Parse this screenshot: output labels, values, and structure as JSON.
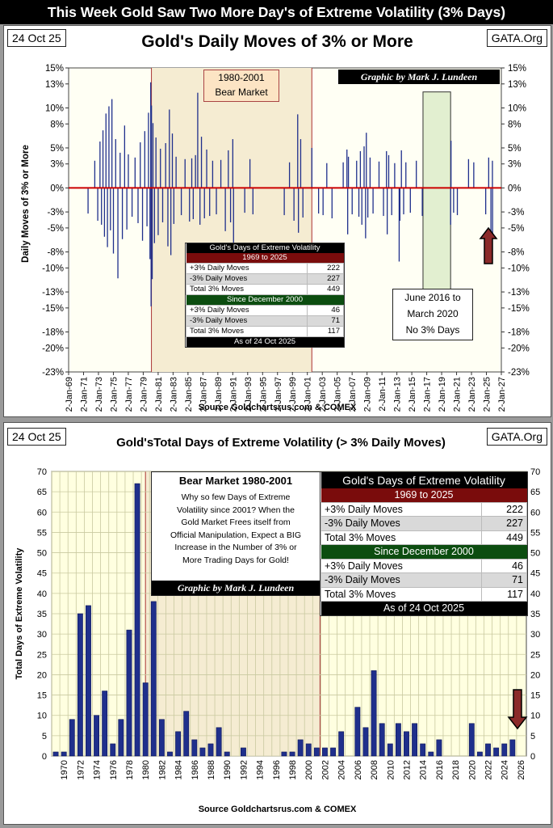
{
  "banner": "This Week Gold Saw Two More Day's of Extreme Volatility (3% Days)",
  "chart_data": [
    {
      "type": "bar",
      "title": "Gold's Daily Moves of 3% or More",
      "date": "24 Oct 25",
      "site": "GATA.Org",
      "ylabel": "Daily Moves  of  3% or More",
      "source": "Source Goldchartsrus.com & COMEX",
      "ylim": [
        -23,
        15
      ],
      "y_ticks": [
        15,
        13,
        10,
        8,
        5,
        3,
        0,
        -3,
        -5,
        -8,
        -10,
        -13,
        -15,
        -18,
        -20,
        -23
      ],
      "x_ticks": [
        "2-Jan-69",
        "2-Jan-71",
        "2-Jan-73",
        "2-Jan-75",
        "2-Jan-77",
        "2-Jan-79",
        "2-Jan-81",
        "2-Jan-83",
        "2-Jan-85",
        "2-Jan-87",
        "2-Jan-89",
        "2-Jan-91",
        "2-Jan-93",
        "2-Jan-95",
        "2-Jan-97",
        "2-Jan-99",
        "2-Jan-01",
        "2-Jan-03",
        "2-Jan-05",
        "2-Jan-07",
        "2-Jan-09",
        "2-Jan-11",
        "2-Jan-13",
        "2-Jan-15",
        "2-Jan-17",
        "2-Jan-19",
        "2-Jan-21",
        "2-Jan-23",
        "2-Jan-25",
        "2-Jan-27"
      ],
      "x_range": [
        1969,
        2027
      ],
      "daily_moves": [
        {
          "x": 1971.6,
          "y": -3.2
        },
        {
          "x": 1972.5,
          "y": 3.4
        },
        {
          "x": 1972.9,
          "y": -4.1
        },
        {
          "x": 1973.2,
          "y": 5.8
        },
        {
          "x": 1973.4,
          "y": -4.6
        },
        {
          "x": 1973.6,
          "y": 7.2
        },
        {
          "x": 1973.8,
          "y": -6.1
        },
        {
          "x": 1974.0,
          "y": 9.3
        },
        {
          "x": 1974.2,
          "y": -7.4
        },
        {
          "x": 1974.4,
          "y": 10.2
        },
        {
          "x": 1974.6,
          "y": -5.3
        },
        {
          "x": 1974.8,
          "y": 11.1
        },
        {
          "x": 1975.0,
          "y": -8.2
        },
        {
          "x": 1975.3,
          "y": 6.1
        },
        {
          "x": 1975.6,
          "y": -11.3
        },
        {
          "x": 1975.9,
          "y": 4.4
        },
        {
          "x": 1976.2,
          "y": -6.4
        },
        {
          "x": 1976.5,
          "y": 7.8
        },
        {
          "x": 1976.8,
          "y": -5.2
        },
        {
          "x": 1977.0,
          "y": 4.2
        },
        {
          "x": 1977.5,
          "y": -3.6
        },
        {
          "x": 1977.9,
          "y": 3.8
        },
        {
          "x": 1978.3,
          "y": -4.4
        },
        {
          "x": 1978.6,
          "y": 5.7
        },
        {
          "x": 1978.9,
          "y": -6.6
        },
        {
          "x": 1979.2,
          "y": 7.1
        },
        {
          "x": 1979.5,
          "y": -4.8
        },
        {
          "x": 1979.7,
          "y": 9.4
        },
        {
          "x": 1979.9,
          "y": -8.9
        },
        {
          "x": 1980.0,
          "y": 13.2
        },
        {
          "x": 1980.05,
          "y": -14.8
        },
        {
          "x": 1980.1,
          "y": 10.3
        },
        {
          "x": 1980.2,
          "y": -11.4
        },
        {
          "x": 1980.3,
          "y": 8.1
        },
        {
          "x": 1980.5,
          "y": -6.9
        },
        {
          "x": 1980.7,
          "y": 6.3
        },
        {
          "x": 1981.0,
          "y": -5.9
        },
        {
          "x": 1981.3,
          "y": 4.9
        },
        {
          "x": 1981.6,
          "y": -4.3
        },
        {
          "x": 1982.0,
          "y": 5.6
        },
        {
          "x": 1982.3,
          "y": -7.3
        },
        {
          "x": 1982.5,
          "y": 9.8
        },
        {
          "x": 1982.7,
          "y": -8.4
        },
        {
          "x": 1982.9,
          "y": 6.8
        },
        {
          "x": 1983.1,
          "y": -4.5
        },
        {
          "x": 1983.4,
          "y": 3.9
        },
        {
          "x": 1984.1,
          "y": -3.4
        },
        {
          "x": 1984.6,
          "y": 3.6
        },
        {
          "x": 1985.2,
          "y": -4.2
        },
        {
          "x": 1985.5,
          "y": 3.7
        },
        {
          "x": 1985.7,
          "y": -3.9
        },
        {
          "x": 1986.0,
          "y": 4.1
        },
        {
          "x": 1986.3,
          "y": 11.9
        },
        {
          "x": 1986.6,
          "y": -4.6
        },
        {
          "x": 1986.8,
          "y": 6.4
        },
        {
          "x": 1987.2,
          "y": -3.8
        },
        {
          "x": 1987.5,
          "y": 4.8
        },
        {
          "x": 1987.9,
          "y": -3.5
        },
        {
          "x": 1988.3,
          "y": 3.4
        },
        {
          "x": 1988.8,
          "y": -3.3
        },
        {
          "x": 1989.4,
          "y": 3.5
        },
        {
          "x": 1990.0,
          "y": -5.4
        },
        {
          "x": 1990.4,
          "y": 4.7
        },
        {
          "x": 1990.7,
          "y": -4.3
        },
        {
          "x": 1991.0,
          "y": 6.1
        },
        {
          "x": 1991.1,
          "y": -7.9
        },
        {
          "x": 1992.6,
          "y": -3.1
        },
        {
          "x": 1993.3,
          "y": 3.6
        },
        {
          "x": 1993.7,
          "y": -3.3
        },
        {
          "x": 1997.9,
          "y": -3.4
        },
        {
          "x": 1998.6,
          "y": 3.2
        },
        {
          "x": 1999.2,
          "y": -4.1
        },
        {
          "x": 1999.7,
          "y": 9.2
        },
        {
          "x": 1999.8,
          "y": -5.6
        },
        {
          "x": 2000.1,
          "y": 6.1
        },
        {
          "x": 2000.4,
          "y": -3.7
        },
        {
          "x": 2001.6,
          "y": 5.0
        },
        {
          "x": 2002.5,
          "y": -3.2
        },
        {
          "x": 2003.1,
          "y": -3.4
        },
        {
          "x": 2003.6,
          "y": 3.1
        },
        {
          "x": 2004.3,
          "y": -3.8
        },
        {
          "x": 2005.8,
          "y": 3.2
        },
        {
          "x": 2006.3,
          "y": 4.8
        },
        {
          "x": 2006.4,
          "y": -5.8
        },
        {
          "x": 2006.5,
          "y": 3.9
        },
        {
          "x": 2007.0,
          "y": -3.3
        },
        {
          "x": 2007.6,
          "y": 3.4
        },
        {
          "x": 2007.9,
          "y": -3.6
        },
        {
          "x": 2008.1,
          "y": 4.6
        },
        {
          "x": 2008.3,
          "y": -4.6
        },
        {
          "x": 2008.6,
          "y": 5.2
        },
        {
          "x": 2008.8,
          "y": -6.3
        },
        {
          "x": 2008.9,
          "y": 6.9
        },
        {
          "x": 2009.1,
          "y": -3.7
        },
        {
          "x": 2009.4,
          "y": 3.8
        },
        {
          "x": 2009.8,
          "y": -3.2
        },
        {
          "x": 2010.6,
          "y": 3.3
        },
        {
          "x": 2011.2,
          "y": -3.5
        },
        {
          "x": 2011.6,
          "y": 4.6
        },
        {
          "x": 2011.7,
          "y": -5.8
        },
        {
          "x": 2011.9,
          "y": 4.1
        },
        {
          "x": 2012.3,
          "y": -3.4
        },
        {
          "x": 2012.7,
          "y": 3.1
        },
        {
          "x": 2013.3,
          "y": -9.2
        },
        {
          "x": 2013.4,
          "y": -4.1
        },
        {
          "x": 2013.6,
          "y": 4.7
        },
        {
          "x": 2013.9,
          "y": -3.3
        },
        {
          "x": 2014.2,
          "y": 3.2
        },
        {
          "x": 2014.8,
          "y": -3.1
        },
        {
          "x": 2015.6,
          "y": 3.4
        },
        {
          "x": 2016.4,
          "y": -3.5
        },
        {
          "x": 2020.2,
          "y": -4.6
        },
        {
          "x": 2020.25,
          "y": 5.9
        },
        {
          "x": 2020.6,
          "y": -3.1
        },
        {
          "x": 2021.1,
          "y": -3.4
        },
        {
          "x": 2022.6,
          "y": 3.6
        },
        {
          "x": 2023.3,
          "y": 3.2
        },
        {
          "x": 2024.9,
          "y": -3.3
        },
        {
          "x": 2025.3,
          "y": 3.8
        },
        {
          "x": 2025.6,
          "y": -6.2
        },
        {
          "x": 2025.8,
          "y": 3.4
        },
        {
          "x": 2025.82,
          "y": -5.8
        }
      ],
      "annotations": {
        "bear_market": [
          "1980-2001",
          "Bear Market"
        ],
        "no_days_box": [
          "June 2016 to",
          "March 2020",
          "No 3% Days"
        ],
        "credit": "Graphic by Mark J. Lundeen"
      },
      "table": {
        "title": "Gold's Days of Extreme Volatility",
        "period1": "1969 to 2025",
        "rows1": [
          [
            "+3% Daily Moves",
            "222"
          ],
          [
            "-3% Daily Moves",
            "227"
          ],
          [
            "Total 3% Moves",
            "449"
          ]
        ],
        "period2": "Since December 2000",
        "rows2": [
          [
            "+3% Daily Moves",
            "46"
          ],
          [
            "-3% Daily Moves",
            "71"
          ],
          [
            "Total 3% Moves",
            "117"
          ]
        ],
        "footer": "As of 24 Oct 2025"
      }
    },
    {
      "type": "bar",
      "title": "Gold'sTotal Days of Extreme Volatility (> 3% Daily Moves)",
      "date": "24 Oct 25",
      "site": "GATA.Org",
      "ylabel": "Total Days of Extreme Volatility",
      "source": "Source Goldchartsrus.com  & COMEX",
      "ylim": [
        0,
        70
      ],
      "y_ticks": [
        0,
        5,
        10,
        15,
        20,
        25,
        30,
        35,
        40,
        45,
        50,
        55,
        60,
        65,
        70
      ],
      "x_ticks": [
        "1970",
        "1972",
        "1974",
        "1976",
        "1978",
        "1980",
        "1982",
        "1984",
        "1986",
        "1988",
        "1990",
        "1992",
        "1994",
        "1996",
        "1998",
        "2000",
        "2002",
        "2004",
        "2006",
        "2008",
        "2010",
        "2012",
        "2014",
        "2016",
        "2018",
        "2020",
        "2022",
        "2024",
        "2026"
      ],
      "categories": [
        1969,
        1970,
        1971,
        1972,
        1973,
        1974,
        1975,
        1976,
        1977,
        1978,
        1979,
        1980,
        1981,
        1982,
        1983,
        1984,
        1985,
        1986,
        1987,
        1988,
        1989,
        1990,
        1991,
        1992,
        1993,
        1994,
        1995,
        1996,
        1997,
        1998,
        1999,
        2000,
        2001,
        2002,
        2003,
        2004,
        2005,
        2006,
        2007,
        2008,
        2009,
        2010,
        2011,
        2012,
        2013,
        2014,
        2015,
        2016,
        2017,
        2018,
        2019,
        2020,
        2021,
        2022,
        2023,
        2024,
        2025
      ],
      "values": [
        1,
        1,
        9,
        35,
        37,
        10,
        16,
        3,
        9,
        31,
        67,
        18,
        38,
        9,
        1,
        6,
        11,
        4,
        2,
        3,
        7,
        1,
        0,
        2,
        0,
        0,
        0,
        0,
        1,
        1,
        4,
        3,
        2,
        2,
        2,
        6,
        0,
        12,
        7,
        21,
        8,
        3,
        8,
        6,
        8,
        3,
        1,
        4,
        0,
        0,
        0,
        8,
        1,
        3,
        2,
        3,
        4
      ],
      "annotations": {
        "bear_title": "Bear Market 1980-2001",
        "note": [
          "Why so few Days of Extreme",
          "Volatility since 2001?  When the",
          "Gold Market Frees itself from",
          "Official Manipulation, Expect a BIG",
          "Increase in the Number of 3% or",
          "More Trading Days for Gold!"
        ],
        "credit": "Graphic by Mark J. Lundeen"
      },
      "table": {
        "title": "Gold's Days of Extreme Volatility",
        "period1": "1969 to 2025",
        "rows1": [
          [
            "+3% Daily Moves",
            "222"
          ],
          [
            "-3% Daily Moves",
            "227"
          ],
          [
            "Total 3% Moves",
            "449"
          ]
        ],
        "period2": "Since December 2000",
        "rows2": [
          [
            "+3% Daily Moves",
            "46"
          ],
          [
            "-3% Daily Moves",
            "71"
          ],
          [
            "Total 3% Moves",
            "117"
          ]
        ],
        "footer": "As of 24 Oct 2025"
      }
    }
  ],
  "colors": {
    "bar": "#1f2f8c",
    "zero_line": "#cc0000",
    "bear_shade": "#f5ecd2",
    "arrow": "#8b2a2a",
    "green_box": "#d5e8c0",
    "grid_bg": "#ffffe0"
  }
}
